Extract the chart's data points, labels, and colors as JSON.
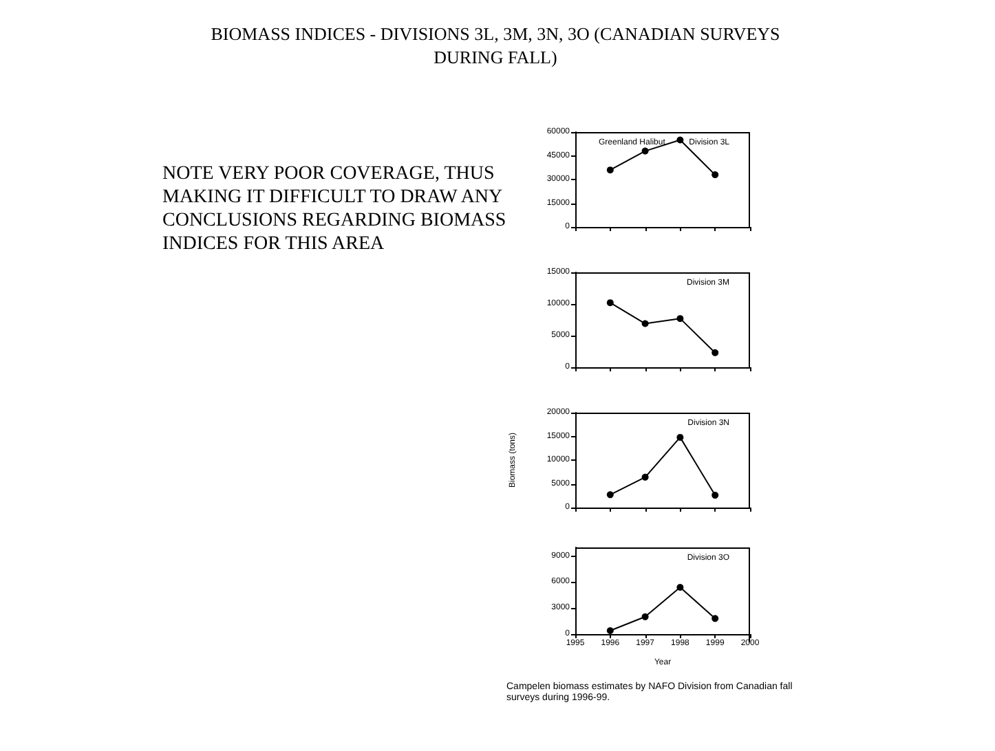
{
  "chart_data": [
    {
      "type": "other",
      "title": "BIOMASS INDICES - DIVISIONS 3L, 3M, 3N, 3O (CANADIAN SURVEYS DURING FALL)",
      "annotations": [
        "NOTE VERY POOR COVERAGE, THUS MAKING IT DIFFICULT TO DRAW ANY CONCLUSIONS REGARDING BIOMASS INDICES FOR THIS AREA"
      ]
    },
    {
      "type": "line",
      "x": [
        1996,
        1997,
        1998,
        1999
      ],
      "series": [
        {
          "color": "#000000",
          "values": [
            36000,
            48000,
            55000,
            33000
          ]
        }
      ],
      "xlim": [
        1995,
        2000
      ],
      "xticks": [
        1995,
        1996,
        1997,
        1998,
        1999,
        2000
      ],
      "ylim": [
        0,
        60000
      ],
      "yticks": [
        0,
        15000,
        30000,
        45000,
        60000
      ],
      "tick_labels": "y",
      "grid": false,
      "marker": "circle",
      "line_style": "solid",
      "annotations": [
        "Division 3L",
        "Greenland Halibut"
      ]
    },
    {
      "type": "line",
      "x": [
        1996,
        1997,
        1998,
        1999
      ],
      "series": [
        {
          "color": "#000000",
          "values": [
            10200,
            6900,
            7700,
            2300
          ]
        }
      ],
      "xlim": [
        1995,
        2000
      ],
      "xticks": [
        1995,
        1996,
        1997,
        1998,
        1999,
        2000
      ],
      "ylim": [
        0,
        15000
      ],
      "yticks": [
        0,
        5000,
        10000,
        15000
      ],
      "tick_labels": "y",
      "grid": false,
      "marker": "circle",
      "line_style": "solid",
      "annotations": [
        "Division 3M"
      ]
    },
    {
      "type": "line",
      "x": [
        1996,
        1997,
        1998,
        1999
      ],
      "series": [
        {
          "color": "#000000",
          "values": [
            2700,
            6400,
            14800,
            2600
          ]
        }
      ],
      "xlim": [
        1995,
        2000
      ],
      "xticks": [
        1995,
        1996,
        1997,
        1998,
        1999,
        2000
      ],
      "ylim": [
        0,
        20000
      ],
      "yticks": [
        0,
        5000,
        10000,
        15000,
        20000
      ],
      "tick_labels": "y",
      "grid": false,
      "marker": "circle",
      "line_style": "solid",
      "ylabel": "Biomass (tons)",
      "annotations": [
        "Division 3N"
      ]
    },
    {
      "type": "line",
      "x": [
        1996,
        1997,
        1998,
        1999
      ],
      "series": [
        {
          "color": "#000000",
          "values": [
            400,
            2000,
            5400,
            1800
          ]
        }
      ],
      "xlim": [
        1995,
        2000
      ],
      "xticks": [
        1995,
        1996,
        1997,
        1998,
        1999,
        2000
      ],
      "ylim": [
        0,
        10000
      ],
      "yticks": [
        0,
        3000,
        6000,
        9000
      ],
      "grid": false,
      "marker": "circle",
      "line_style": "solid",
      "xlabel": "Year",
      "annotations": [
        "Division 3O",
        "Campelen biomass estimates by NAFO Division from Canadian fall surveys during 1996-99."
      ]
    }
  ]
}
